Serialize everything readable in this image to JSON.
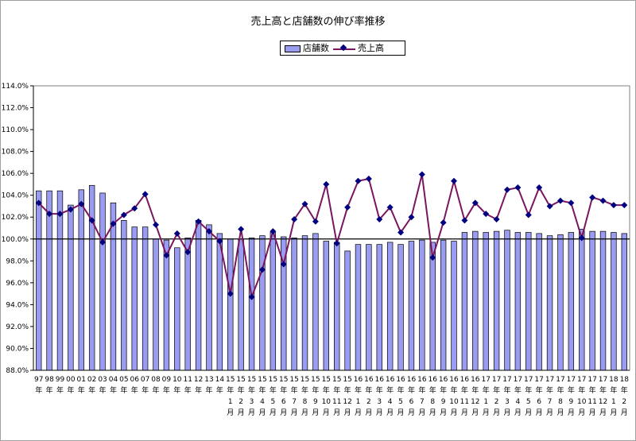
{
  "chart_data": {
    "type": "bar",
    "title": "売上高と店舗数の伸び率推移",
    "legend_placement": "top-center",
    "grid": false,
    "ylim": [
      88,
      114
    ],
    "y_ticks": [
      "88.0%",
      "90.0%",
      "92.0%",
      "94.0%",
      "96.0%",
      "98.0%",
      "100.0%",
      "102.0%",
      "104.0%",
      "106.0%",
      "108.0%",
      "110.0%",
      "112.0%",
      "114.0%"
    ],
    "y_tick_values": [
      88,
      90,
      92,
      94,
      96,
      98,
      100,
      102,
      104,
      106,
      108,
      110,
      112,
      114
    ],
    "reference_line": 100,
    "categories": [
      [
        "97",
        "年"
      ],
      [
        "98",
        "年"
      ],
      [
        "99",
        "年"
      ],
      [
        "00",
        "年"
      ],
      [
        "01",
        "年"
      ],
      [
        "02",
        "年"
      ],
      [
        "03",
        "年"
      ],
      [
        "04",
        "年"
      ],
      [
        "05",
        "年"
      ],
      [
        "06",
        "年"
      ],
      [
        "07",
        "年"
      ],
      [
        "08",
        "年"
      ],
      [
        "09",
        "年"
      ],
      [
        "10",
        "年"
      ],
      [
        "11",
        "年"
      ],
      [
        "12",
        "年"
      ],
      [
        "13",
        "年"
      ],
      [
        "14",
        "年"
      ],
      [
        "15",
        "年",
        "1",
        "月"
      ],
      [
        "15",
        "年",
        "2",
        "月"
      ],
      [
        "15",
        "年",
        "3",
        "月"
      ],
      [
        "15",
        "年",
        "4",
        "月"
      ],
      [
        "15",
        "年",
        "5",
        "月"
      ],
      [
        "15",
        "年",
        "6",
        "月"
      ],
      [
        "15",
        "年",
        "7",
        "月"
      ],
      [
        "15",
        "年",
        "8",
        "月"
      ],
      [
        "15",
        "年",
        "9",
        "月"
      ],
      [
        "15",
        "年",
        "10",
        "月"
      ],
      [
        "15",
        "年",
        "11",
        "月"
      ],
      [
        "15",
        "年",
        "12",
        "月"
      ],
      [
        "16",
        "年",
        "1",
        "月"
      ],
      [
        "16",
        "年",
        "2",
        "月"
      ],
      [
        "16",
        "年",
        "3",
        "月"
      ],
      [
        "16",
        "年",
        "4",
        "月"
      ],
      [
        "16",
        "年",
        "5",
        "月"
      ],
      [
        "16",
        "年",
        "6",
        "月"
      ],
      [
        "16",
        "年",
        "7",
        "月"
      ],
      [
        "16",
        "年",
        "8",
        "月"
      ],
      [
        "16",
        "年",
        "9",
        "月"
      ],
      [
        "16",
        "年",
        "10",
        "月"
      ],
      [
        "16",
        "年",
        "11",
        "月"
      ],
      [
        "16",
        "年",
        "12",
        "月"
      ],
      [
        "17",
        "年",
        "1",
        "月"
      ],
      [
        "17",
        "年",
        "2",
        "月"
      ],
      [
        "17",
        "年",
        "3",
        "月"
      ],
      [
        "17",
        "年",
        "4",
        "月"
      ],
      [
        "17",
        "年",
        "5",
        "月"
      ],
      [
        "17",
        "年",
        "6",
        "月"
      ],
      [
        "17",
        "年",
        "7",
        "月"
      ],
      [
        "17",
        "年",
        "8",
        "月"
      ],
      [
        "17",
        "年",
        "9",
        "月"
      ],
      [
        "17",
        "年",
        "10",
        "月"
      ],
      [
        "17",
        "年",
        "11",
        "月"
      ],
      [
        "17",
        "年",
        "12",
        "月"
      ],
      [
        "18",
        "年",
        "1",
        "月"
      ],
      [
        "18",
        "年",
        "2",
        "月"
      ]
    ],
    "series": [
      {
        "name": "店舗数",
        "type": "bar",
        "color": "#9a9cf2",
        "values": [
          104.4,
          104.4,
          104.4,
          103.1,
          104.5,
          104.9,
          104.2,
          103.3,
          101.7,
          101.1,
          101.1,
          100.0,
          99.9,
          99.2,
          100.1,
          101.7,
          101.3,
          100.5,
          100.0,
          100.0,
          100.1,
          100.3,
          100.6,
          100.2,
          100.1,
          100.3,
          100.5,
          99.8,
          99.7,
          98.9,
          99.5,
          99.5,
          99.5,
          99.7,
          99.5,
          99.8,
          99.9,
          99.7,
          99.9,
          99.8,
          100.6,
          100.7,
          100.6,
          100.7,
          100.8,
          100.6,
          100.6,
          100.5,
          100.3,
          100.4,
          100.6,
          100.9,
          100.7,
          100.7,
          100.6,
          100.5
        ]
      },
      {
        "name": "売上高",
        "type": "line",
        "color": "#7a1560",
        "marker_color": "#000080",
        "values": [
          103.3,
          102.3,
          102.3,
          102.7,
          103.2,
          101.7,
          99.7,
          101.4,
          102.2,
          102.8,
          104.1,
          101.3,
          98.5,
          100.5,
          98.8,
          101.6,
          100.7,
          99.8,
          95.0,
          100.9,
          94.7,
          97.2,
          100.7,
          97.7,
          101.8,
          103.2,
          101.6,
          105.0,
          99.6,
          102.9,
          105.3,
          105.5,
          101.8,
          102.9,
          100.6,
          102.0,
          105.9,
          98.3,
          101.5,
          105.3,
          101.7,
          103.3,
          102.3,
          101.8,
          104.5,
          104.7,
          102.2,
          104.7,
          103.0,
          103.5,
          103.3,
          100.1,
          103.8,
          103.5,
          103.1,
          103.1
        ]
      }
    ]
  }
}
